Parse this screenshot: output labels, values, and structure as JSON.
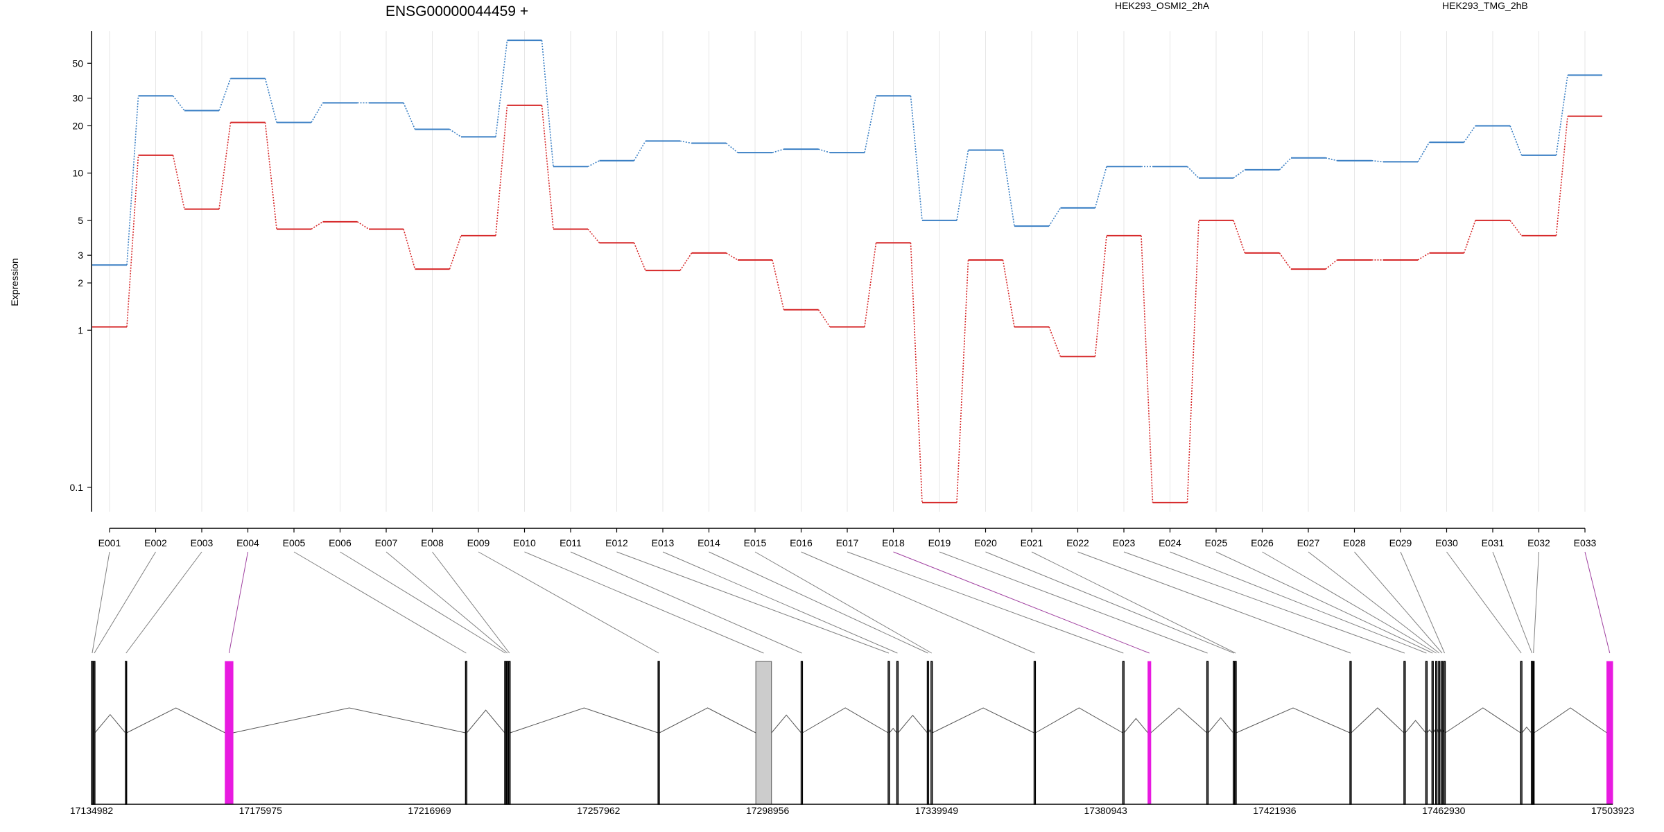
{
  "chart_data": {
    "type": "line",
    "title": "ENSG00000044459 +",
    "ylabel": "Expression",
    "yscale": "log",
    "yticks": [
      0.1,
      1,
      2,
      3,
      5,
      10,
      20,
      30,
      50
    ],
    "ylim": [
      0.07,
      80
    ],
    "categories": [
      "E001",
      "E002",
      "E003",
      "E004",
      "E005",
      "E006",
      "E007",
      "E008",
      "E009",
      "E010",
      "E011",
      "E012",
      "E013",
      "E014",
      "E015",
      "E016",
      "E017",
      "E018",
      "E019",
      "E020",
      "E021",
      "E022",
      "E023",
      "E024",
      "E025",
      "E026",
      "E027",
      "E028",
      "E029",
      "E030",
      "E031",
      "E032",
      "E033"
    ],
    "series": [
      {
        "name": "HEK293_OSMI2_2hA",
        "color": "#d62728",
        "values": [
          1.05,
          13,
          5.9,
          21,
          4.4,
          4.9,
          4.4,
          2.45,
          4,
          27,
          4.4,
          3.6,
          2.4,
          3.1,
          2.8,
          1.35,
          1.05,
          3.6,
          0.08,
          2.8,
          1.05,
          0.68,
          4,
          0.08,
          5,
          3.1,
          2.45,
          2.8,
          2.8,
          3.1,
          5,
          4,
          23
        ]
      },
      {
        "name": "HEK293_TMG_2hB",
        "color": "#3a7fc4",
        "values": [
          2.6,
          31,
          25,
          40,
          21,
          28,
          28,
          19,
          17,
          70,
          11,
          12,
          16,
          15.5,
          13.5,
          14.2,
          13.5,
          31,
          5,
          14,
          4.6,
          6,
          11,
          11,
          9.3,
          10.5,
          12.5,
          12,
          11.8,
          15.7,
          20,
          13,
          42
        ]
      }
    ],
    "legend_position": "top",
    "grid": "vertical",
    "genomic_axis": {
      "ticks": [
        "17134982",
        "17175975",
        "17216969",
        "17257962",
        "17298956",
        "17339949",
        "17380943",
        "17421936",
        "17462930",
        "17503923"
      ],
      "range": [
        17134982,
        17503923
      ]
    },
    "exons": [
      {
        "id": "E001",
        "start": 17134982,
        "end": 17135300,
        "highlight": false
      },
      {
        "id": "E002",
        "start": 17135500,
        "end": 17135800,
        "highlight": false
      },
      {
        "id": "E003",
        "start": 17143200,
        "end": 17143500,
        "highlight": false
      },
      {
        "id": "E004",
        "start": 17167400,
        "end": 17169300,
        "highlight": true
      },
      {
        "id": "E005",
        "start": 17225700,
        "end": 17226000,
        "highlight": false
      },
      {
        "id": "E006",
        "start": 17235200,
        "end": 17235500,
        "highlight": false
      },
      {
        "id": "E007",
        "start": 17235700,
        "end": 17236000,
        "highlight": false
      },
      {
        "id": "E008",
        "start": 17236200,
        "end": 17236500,
        "highlight": false
      },
      {
        "id": "E009",
        "start": 17272400,
        "end": 17272700,
        "highlight": false
      },
      {
        "id": "E010",
        "start": 17296100,
        "end": 17299900,
        "highlight": false,
        "shaded": true
      },
      {
        "id": "E011",
        "start": 17307100,
        "end": 17307400,
        "highlight": false
      },
      {
        "id": "E012",
        "start": 17328200,
        "end": 17328500,
        "highlight": false
      },
      {
        "id": "E013",
        "start": 17330300,
        "end": 17330600,
        "highlight": false
      },
      {
        "id": "E014",
        "start": 17337700,
        "end": 17338000,
        "highlight": false
      },
      {
        "id": "E015",
        "start": 17338600,
        "end": 17338900,
        "highlight": false
      },
      {
        "id": "E016",
        "start": 17363600,
        "end": 17363900,
        "highlight": false
      },
      {
        "id": "E017",
        "start": 17385100,
        "end": 17385400,
        "highlight": false
      },
      {
        "id": "E018",
        "start": 17391200,
        "end": 17391900,
        "highlight": true
      },
      {
        "id": "E019",
        "start": 17405500,
        "end": 17405800,
        "highlight": false
      },
      {
        "id": "E020",
        "start": 17411900,
        "end": 17412200,
        "highlight": false
      },
      {
        "id": "E021",
        "start": 17412300,
        "end": 17412600,
        "highlight": false
      },
      {
        "id": "E022",
        "start": 17440200,
        "end": 17440500,
        "highlight": false
      },
      {
        "id": "E023",
        "start": 17453300,
        "end": 17453600,
        "highlight": false
      },
      {
        "id": "E024",
        "start": 17458600,
        "end": 17458900,
        "highlight": false
      },
      {
        "id": "E025",
        "start": 17460100,
        "end": 17460400,
        "highlight": false
      },
      {
        "id": "E026",
        "start": 17461000,
        "end": 17461300,
        "highlight": false
      },
      {
        "id": "E027",
        "start": 17461700,
        "end": 17462000,
        "highlight": false
      },
      {
        "id": "E028",
        "start": 17462400,
        "end": 17462700,
        "highlight": false
      },
      {
        "id": "E029",
        "start": 17463000,
        "end": 17463300,
        "highlight": false
      },
      {
        "id": "E030",
        "start": 17481600,
        "end": 17481900,
        "highlight": false
      },
      {
        "id": "E031",
        "start": 17484200,
        "end": 17484500,
        "highlight": false
      },
      {
        "id": "E032",
        "start": 17484600,
        "end": 17484800,
        "highlight": false
      },
      {
        "id": "E033",
        "start": 17502500,
        "end": 17503923,
        "highlight": true
      }
    ],
    "colors": {
      "axis": "#000000",
      "grid": "#e6e6e6",
      "connector": "#808080",
      "connector_highlight": "#a040a0",
      "exon_highlight": "#e81be0",
      "exon_shaded": "#cccccc"
    }
  }
}
